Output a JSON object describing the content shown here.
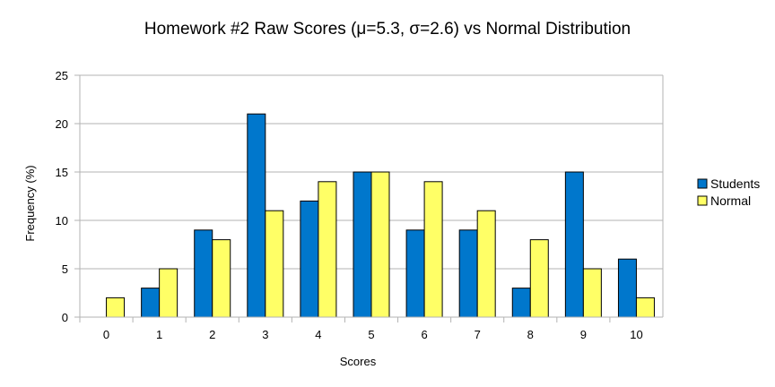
{
  "chart_data": {
    "type": "bar",
    "title": "Homework #2 Raw Scores (μ=5.3, σ=2.6) vs Normal Distribution",
    "xlabel": "Scores",
    "ylabel": "Frequency (%)",
    "categories": [
      "0",
      "1",
      "2",
      "3",
      "4",
      "5",
      "6",
      "7",
      "8",
      "9",
      "10"
    ],
    "series": [
      {
        "name": "Students",
        "color": "#0077cc",
        "values": [
          0,
          3,
          9,
          21,
          12,
          15,
          9,
          9,
          3,
          15,
          6
        ]
      },
      {
        "name": "Normal",
        "color": "#ffff66",
        "values": [
          2,
          5,
          8,
          11,
          14,
          15,
          14,
          11,
          8,
          5,
          2
        ]
      }
    ],
    "ylim": [
      0,
      25
    ],
    "yticks": [
      "0",
      "5",
      "10",
      "15",
      "20",
      "25"
    ],
    "grid": true,
    "legend": "right"
  }
}
